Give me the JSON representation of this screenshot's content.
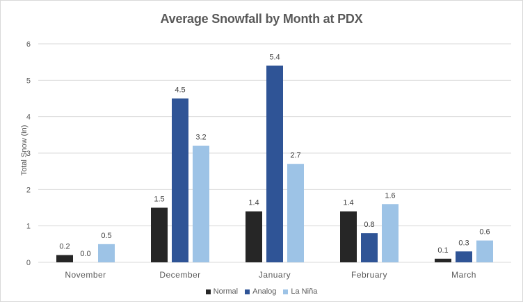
{
  "chart_data": {
    "type": "bar",
    "title": "Average Snowfall by Month at PDX",
    "xlabel": "",
    "ylabel": "Total Snow (in)",
    "ylim": [
      0,
      6
    ],
    "yticks": [
      0,
      1,
      2,
      3,
      4,
      5,
      6
    ],
    "grid": true,
    "legend_position": "bottom",
    "categories": [
      "November",
      "December",
      "January",
      "February",
      "March"
    ],
    "series": [
      {
        "name": "Normal",
        "color": "#262626",
        "values": [
          0.2,
          1.5,
          1.4,
          1.4,
          0.1
        ],
        "labels": [
          "0.2",
          "1.5",
          "1.4",
          "1.4",
          "0.1"
        ]
      },
      {
        "name": "Analog",
        "color": "#2f5496",
        "values": [
          0.0,
          4.5,
          5.4,
          0.8,
          0.3
        ],
        "labels": [
          "0.0",
          "4.5",
          "5.4",
          "0.8",
          "0.3"
        ]
      },
      {
        "name": "La Niña",
        "color": "#9dc3e6",
        "values": [
          0.5,
          3.2,
          2.7,
          1.6,
          0.6
        ],
        "labels": [
          "0.5",
          "3.2",
          "2.7",
          "1.6",
          "0.6"
        ]
      }
    ]
  }
}
